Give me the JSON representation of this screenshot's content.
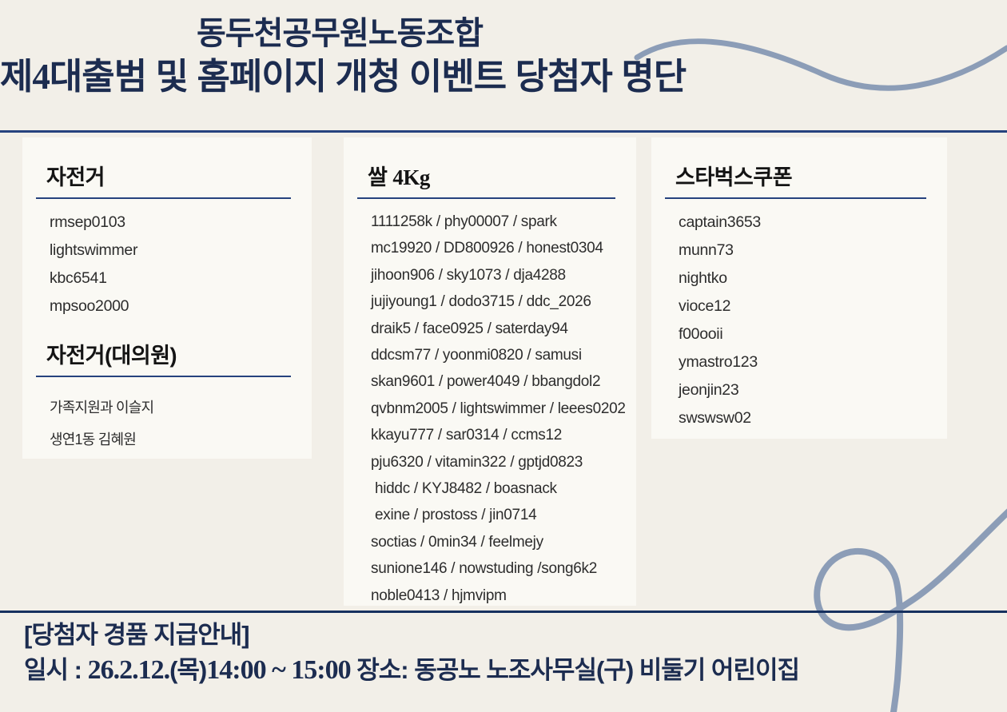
{
  "theme": {
    "page_bg": "#f2efe8",
    "panel_bg": "#faf9f4",
    "navy_text": "#1c2c50",
    "divider_navy": "#26427e",
    "footer_divider_navy": "#16305f",
    "swirl_blue": "#8c9db7",
    "item_text": "#2d2d2d"
  },
  "header": {
    "title_line1": "동두천공무원노동조합",
    "title_line2_prefix": "제",
    "title_line2_number": "4",
    "title_line2_rest": "대출범 및 홈페이지 개청 이벤트 당첨자 명단"
  },
  "panels": {
    "bicycle": {
      "title": "자전거",
      "items": [
        "rmsep0103",
        "lightswimmer",
        "kbc6541",
        "mpsoo2000"
      ]
    },
    "bicycle_delegate": {
      "title": "자전거(대의원)",
      "items": [
        "가족지원과 이슬지",
        "생연1동 김혜원"
      ]
    },
    "rice": {
      "title_text": "쌀 ",
      "title_qty": "4Kg",
      "items": [
        "1111258k / phy00007 / spark",
        "mc19920 / DD800926 / honest0304",
        "jihoon906 / sky1073 / dja4288",
        "jujiyoung1 / dodo3715 / ddc_2026",
        "draik5 / face0925 / saterday94",
        "ddcsm77 / yoonmi0820 / samusi",
        "skan9601 / power4049 / bbangdol2",
        "qvbnm2005 / lightswimmer / leees0202",
        "kkayu777 / sar0314 / ccms12",
        "pju6320 / vitamin322 / gptjd0823",
        " hiddc / KYJ8482 / boasnack",
        " exine / prostoss / jin0714",
        "soctias / 0min34 / feelmejy",
        "sunione146 / nowstuding /song6k2",
        "noble0413 / hjmvipm"
      ]
    },
    "starbucks": {
      "title": "스타벅스쿠폰",
      "items": [
        "captain3653",
        "munn73",
        "nightko",
        "vioce12",
        "f00ooii",
        "ymastro123",
        "jeonjin23",
        "swswsw02"
      ]
    }
  },
  "footer": {
    "notice_title": "[당첨자 경품 지급안내]",
    "datetime_label": "일시 : ",
    "date": "26.2.12.",
    "day": "(목)",
    "time_range_start": "14:00",
    "time_tilde": " ~ ",
    "time_range_end": "15:00",
    "location": " 장소: 동공노 노조사무실(구) 비둘기 어린이집"
  }
}
